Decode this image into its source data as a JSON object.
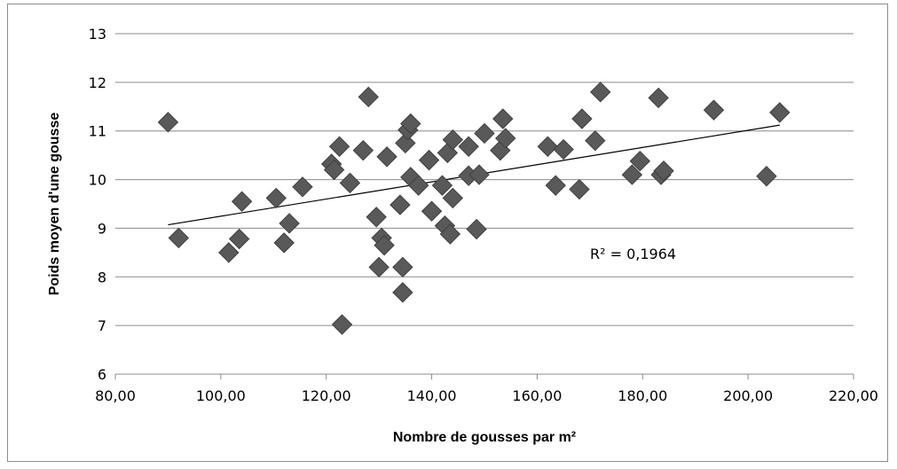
{
  "chart_data": {
    "type": "scatter",
    "title": "",
    "xlabel": "Nombre de gousses par m²",
    "ylabel": "Poids moyen d'une gousse",
    "xlim": [
      80,
      220
    ],
    "ylim": [
      6,
      13
    ],
    "x_ticks": [
      "80,00",
      "100,00",
      "120,00",
      "140,00",
      "160,00",
      "180,00",
      "200,00",
      "220,00"
    ],
    "y_ticks": [
      "6",
      "7",
      "8",
      "9",
      "10",
      "11",
      "12",
      "13"
    ],
    "grid": "horizontal",
    "marker": "diamond",
    "marker_color": "#595959",
    "trendline": {
      "type": "linear",
      "x": [
        90,
        206
      ],
      "y": [
        9.07,
        11.12
      ]
    },
    "annotation": "R² = 0,1964",
    "series": [
      {
        "points": [
          [
            90,
            11.18
          ],
          [
            92,
            8.8
          ],
          [
            101.5,
            8.5
          ],
          [
            103.5,
            8.78
          ],
          [
            104,
            9.55
          ],
          [
            110.5,
            9.62
          ],
          [
            112,
            8.7
          ],
          [
            113,
            9.1
          ],
          [
            115.5,
            9.85
          ],
          [
            121,
            10.32
          ],
          [
            121.5,
            10.2
          ],
          [
            122.5,
            10.68
          ],
          [
            123,
            7.02
          ],
          [
            124.5,
            9.93
          ],
          [
            127,
            10.6
          ],
          [
            128,
            11.7
          ],
          [
            129.5,
            9.23
          ],
          [
            130,
            8.2
          ],
          [
            130.5,
            8.8
          ],
          [
            131,
            8.65
          ],
          [
            131.5,
            10.47
          ],
          [
            134,
            9.48
          ],
          [
            134.5,
            8.2
          ],
          [
            134.5,
            7.68
          ],
          [
            135,
            10.75
          ],
          [
            135.5,
            11.02
          ],
          [
            136,
            11.15
          ],
          [
            136,
            10.05
          ],
          [
            137.5,
            9.88
          ],
          [
            139.5,
            10.4
          ],
          [
            140,
            9.35
          ],
          [
            142,
            9.88
          ],
          [
            142.5,
            9.05
          ],
          [
            143,
            10.55
          ],
          [
            143.5,
            8.88
          ],
          [
            144,
            9.62
          ],
          [
            144,
            10.82
          ],
          [
            147,
            10.68
          ],
          [
            147,
            10.08
          ],
          [
            148.5,
            8.98
          ],
          [
            149,
            10.1
          ],
          [
            150,
            10.95
          ],
          [
            153,
            10.6
          ],
          [
            153.5,
            11.25
          ],
          [
            154,
            10.85
          ],
          [
            162,
            10.68
          ],
          [
            163.5,
            9.88
          ],
          [
            165,
            10.62
          ],
          [
            168,
            9.8
          ],
          [
            168.5,
            11.25
          ],
          [
            171,
            10.8
          ],
          [
            172,
            11.8
          ],
          [
            178,
            10.1
          ],
          [
            179.5,
            10.38
          ],
          [
            183,
            11.68
          ],
          [
            183.5,
            10.1
          ],
          [
            184,
            10.18
          ],
          [
            193.5,
            11.43
          ],
          [
            203.5,
            10.07
          ],
          [
            206,
            11.38
          ]
        ]
      }
    ]
  }
}
